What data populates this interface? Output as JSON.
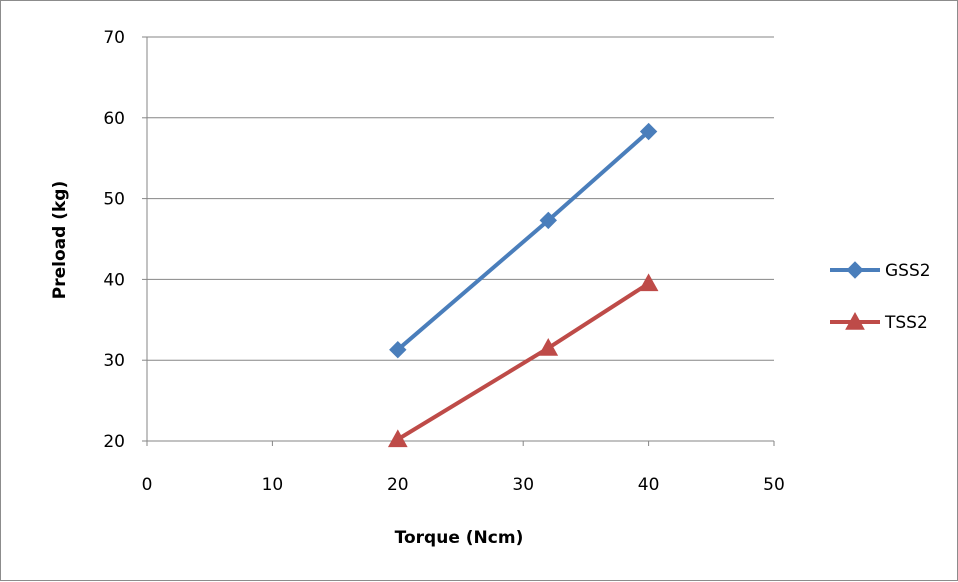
{
  "chart_data": {
    "type": "line",
    "title": "",
    "xlabel": "Torque (Ncm)",
    "ylabel": "Preload (kg)",
    "xlim": [
      0,
      50
    ],
    "ylim": [
      20,
      70
    ],
    "xticks": [
      "0",
      "10",
      "20",
      "30",
      "40",
      "50"
    ],
    "yticks": [
      "20",
      "30",
      "40",
      "50",
      "60",
      "70"
    ],
    "grid": "horizontal",
    "legend_position": "right",
    "series": [
      {
        "name": "GSS2",
        "color": "#4a7ebb",
        "marker": "diamond",
        "x": [
          20,
          32,
          40
        ],
        "y": [
          31.3,
          47.3,
          58.3
        ]
      },
      {
        "name": "TSS2",
        "color": "#be4b48",
        "marker": "triangle",
        "x": [
          20,
          32,
          40
        ],
        "y": [
          20.2,
          31.5,
          39.5
        ]
      }
    ]
  }
}
